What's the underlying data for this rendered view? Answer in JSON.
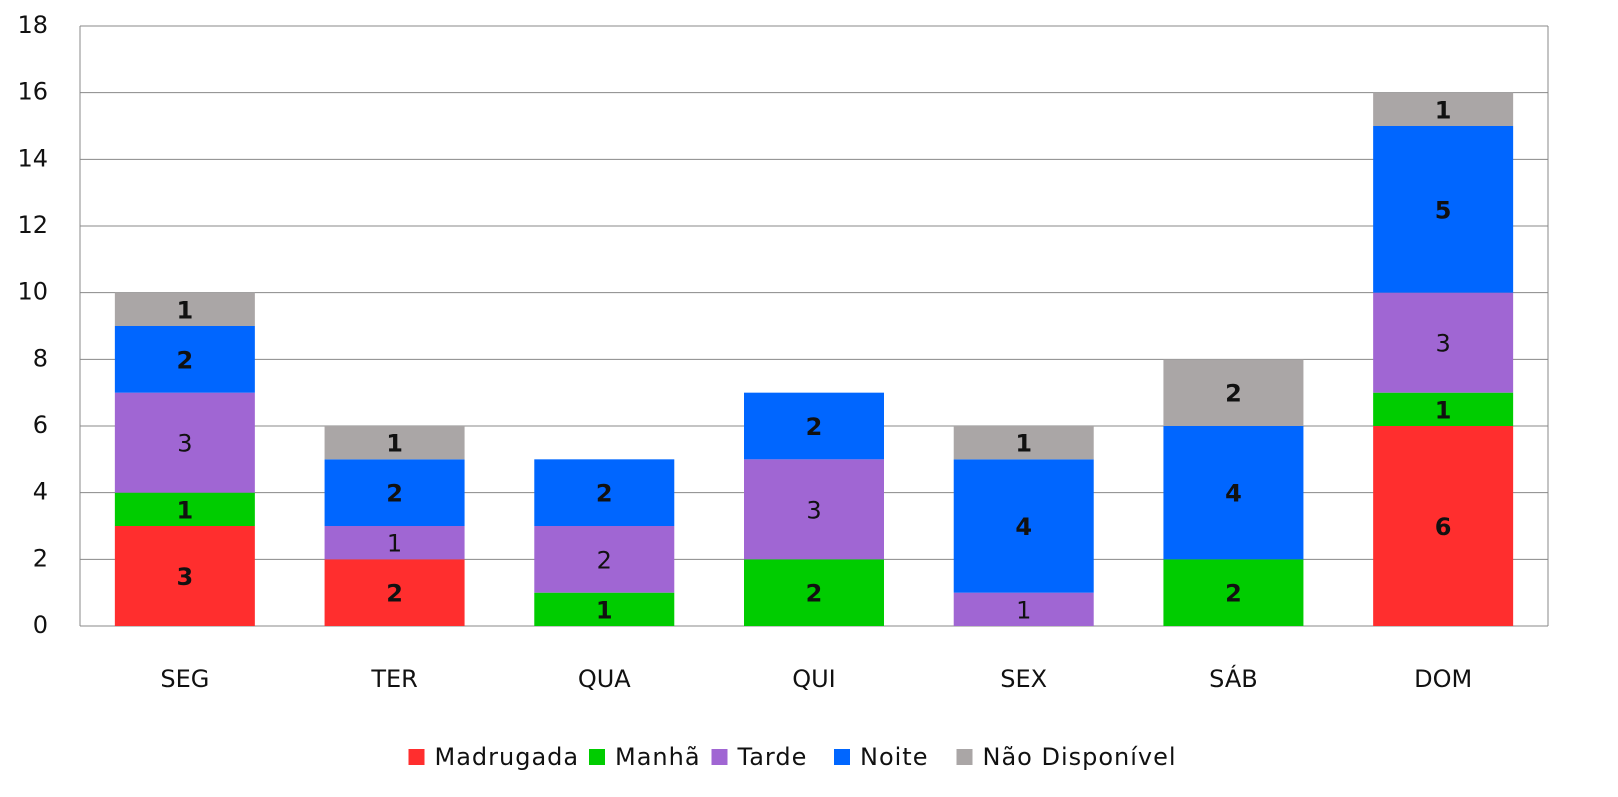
{
  "chart_data": {
    "type": "stacked_bar",
    "categories": [
      "SEG",
      "TER",
      "QUA",
      "QUI",
      "SEX",
      "SÁB",
      "DOM"
    ],
    "series": [
      {
        "name": "Madrugada",
        "color": "#ff2e2e",
        "values": [
          3,
          2,
          null,
          null,
          null,
          null,
          6
        ]
      },
      {
        "name": "Manhã",
        "color": "#00cc00",
        "values": [
          1,
          null,
          1,
          2,
          null,
          2,
          1
        ]
      },
      {
        "name": "Tarde",
        "color": "#a066d3",
        "values": [
          3,
          1,
          2,
          3,
          1,
          null,
          3
        ]
      },
      {
        "name": "Noite",
        "color": "#0066ff",
        "values": [
          2,
          2,
          2,
          2,
          4,
          4,
          5
        ]
      },
      {
        "name": "Não Disponível",
        "color": "#aaa6a6",
        "values": [
          1,
          1,
          null,
          null,
          1,
          2,
          1
        ]
      }
    ],
    "ylim": [
      0,
      18
    ],
    "yticks": [
      0,
      2,
      4,
      6,
      8,
      10,
      12,
      14,
      16,
      18
    ],
    "grid": true,
    "legend": "bottom"
  }
}
